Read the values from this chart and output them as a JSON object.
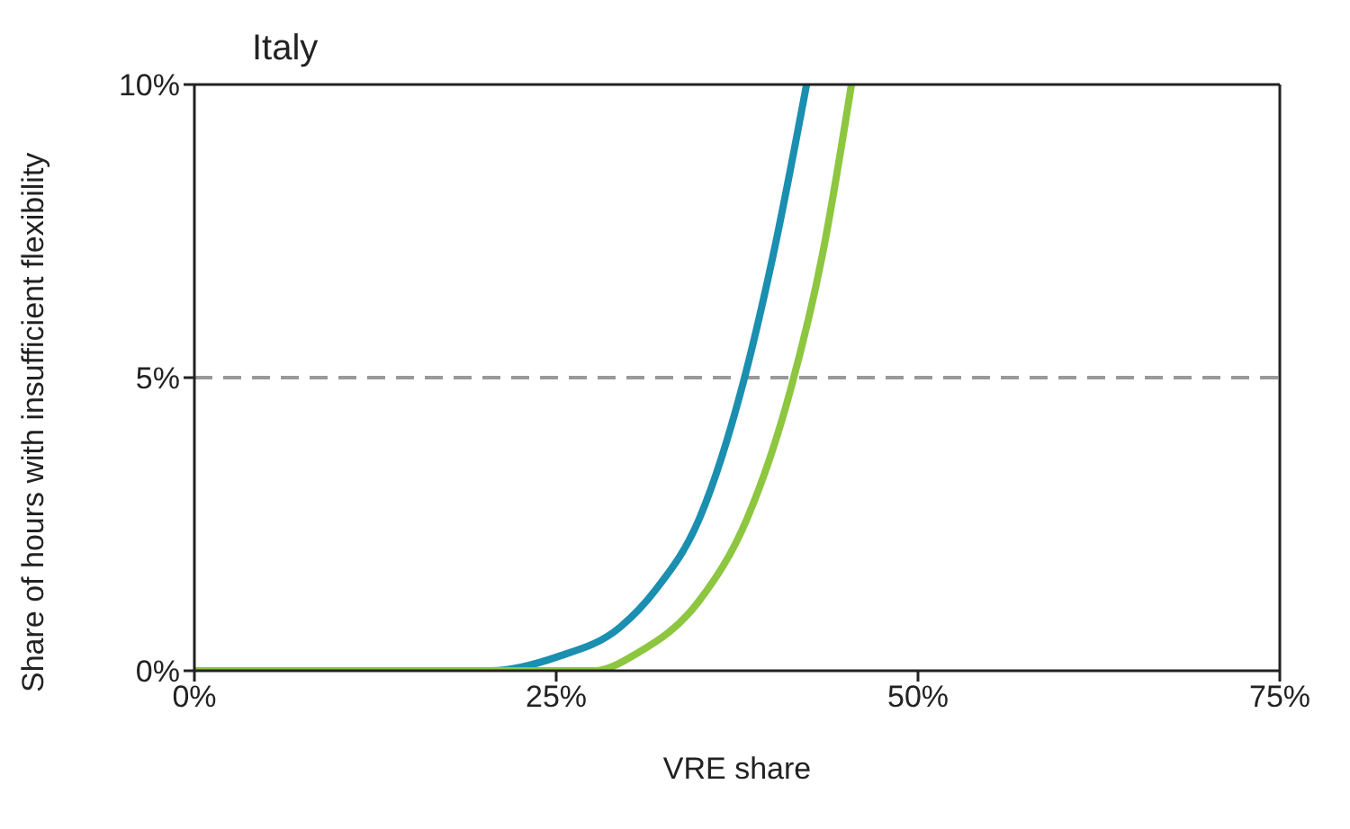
{
  "chart_data": {
    "type": "line",
    "title": "Italy",
    "xlabel": "VRE share",
    "ylabel": "Share of hours with insufficient flexibility",
    "series": [
      {
        "color": "#1a8fb0",
        "x": [
          0,
          20.5,
          25.1,
          29.4,
          31.9,
          34.9,
          37.8,
          40.0,
          42.3
        ],
        "values": [
          0,
          0,
          0.24,
          0.74,
          1.39,
          2.6,
          4.8,
          7.1,
          10
        ]
      },
      {
        "color": "#8dc63f",
        "x": [
          0,
          27.6,
          30.6,
          34.9,
          38.2,
          41.2,
          43.4,
          45.4
        ],
        "values": [
          0,
          0,
          0.3,
          1.2,
          2.6,
          4.8,
          7.1,
          10
        ]
      }
    ],
    "xlim": [
      0,
      75
    ],
    "xticks": [
      {
        "value": 0,
        "label": "0%"
      },
      {
        "value": 25,
        "label": "25%"
      },
      {
        "value": 50,
        "label": "50%"
      },
      {
        "value": 75,
        "label": "75%"
      }
    ],
    "ylim": [
      0,
      10
    ],
    "yticks": [
      {
        "value": 0,
        "label": "0%"
      },
      {
        "value": 5,
        "label": "5%"
      },
      {
        "value": 10,
        "label": "10%"
      }
    ],
    "ref_lines": [
      {
        "axis": "y",
        "value": 5,
        "color": "#999999",
        "line_style": "dashed"
      }
    ],
    "grid": false,
    "marker": "none",
    "line_style": "solid"
  }
}
